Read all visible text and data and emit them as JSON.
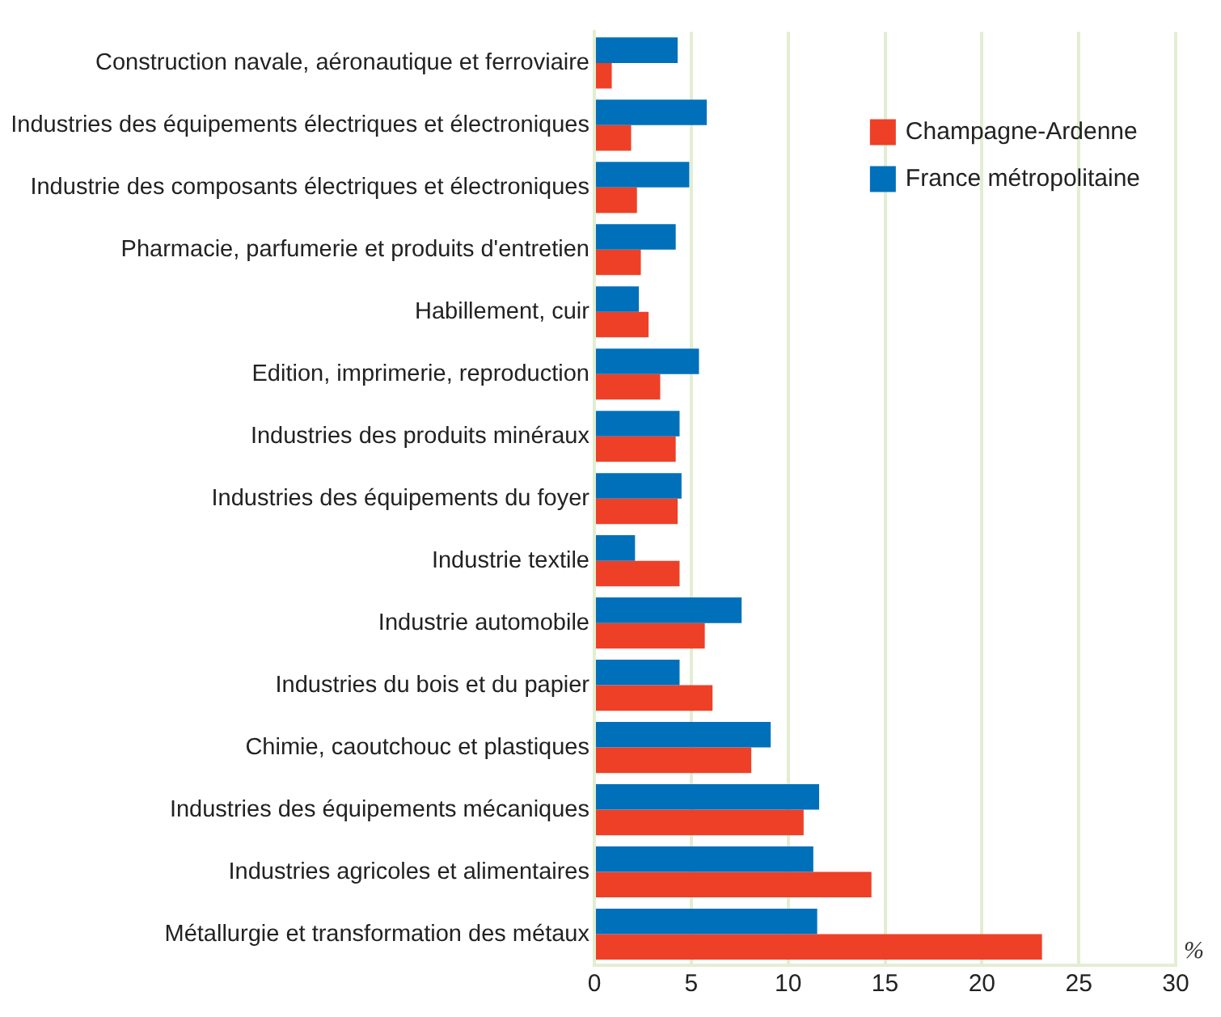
{
  "chart_data": {
    "type": "bar",
    "orientation": "horizontal",
    "xlabel": "%",
    "categories": [
      "Construction navale, aéronautique et ferroviaire",
      "Industries des équipements électriques et électroniques",
      "Industrie des composants électriques et électroniques",
      "Pharmacie, parfumerie et produits d'entretien",
      "Habillement, cuir",
      "Edition, imprimerie, reproduction",
      "Industries des produits minéraux",
      "Industries des équipements du foyer",
      "Industrie textile",
      "Industrie automobile",
      "Industries du bois et du papier",
      "Chimie, caoutchouc et plastiques",
      "Industries des équipements mécaniques",
      "Industries agricoles et alimentaires",
      "Métallurgie et transformation des métaux"
    ],
    "series": [
      {
        "name": "Champagne-Ardenne",
        "color": "#ee4027",
        "values": [
          0.9,
          1.9,
          2.2,
          2.4,
          2.8,
          3.4,
          4.2,
          4.3,
          4.4,
          5.7,
          6.1,
          8.1,
          10.8,
          14.3,
          23.1
        ]
      },
      {
        "name": "France métropolitaine",
        "color": "#0070ba",
        "values": [
          4.3,
          5.8,
          4.9,
          4.2,
          2.3,
          5.4,
          4.4,
          4.5,
          2.1,
          7.6,
          4.4,
          9.1,
          11.6,
          11.3,
          11.5
        ]
      }
    ],
    "xlim": [
      0,
      30
    ],
    "xticks": [
      0,
      5,
      10,
      15,
      20,
      25,
      30
    ],
    "grid": "x",
    "legend": "top right"
  }
}
